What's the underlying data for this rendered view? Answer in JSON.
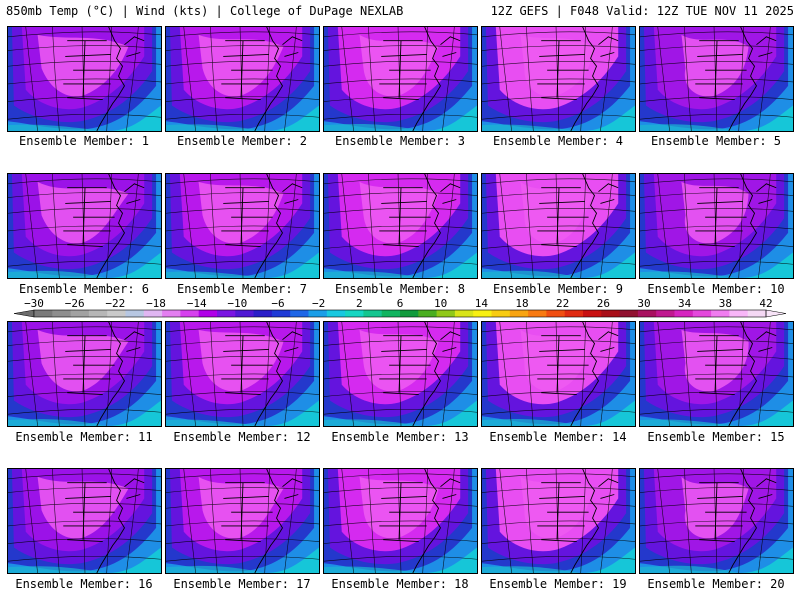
{
  "header": {
    "left": "850mb Temp (°C) | Wind (kts) | College of DuPage NEXLAB",
    "right": "12Z GEFS | F048 Valid: 12Z TUE NOV 11 2025"
  },
  "panels": [
    {
      "label": "Ensemble Member: 1"
    },
    {
      "label": "Ensemble Member: 2"
    },
    {
      "label": "Ensemble Member: 3"
    },
    {
      "label": "Ensemble Member: 4"
    },
    {
      "label": "Ensemble Member: 5"
    },
    {
      "label": "Ensemble Member: 6"
    },
    {
      "label": "Ensemble Member: 7"
    },
    {
      "label": "Ensemble Member: 8"
    },
    {
      "label": "Ensemble Member: 9"
    },
    {
      "label": "Ensemble Member: 10"
    },
    {
      "label": "Ensemble Member: 11"
    },
    {
      "label": "Ensemble Member: 12"
    },
    {
      "label": "Ensemble Member: 13"
    },
    {
      "label": "Ensemble Member: 14"
    },
    {
      "label": "Ensemble Member: 15"
    },
    {
      "label": "Ensemble Member: 16"
    },
    {
      "label": "Ensemble Member: 17"
    },
    {
      "label": "Ensemble Member: 18"
    },
    {
      "label": "Ensemble Member: 19"
    },
    {
      "label": "Ensemble Member: 20"
    }
  ],
  "colorbar": {
    "tick_labels": [
      "−30",
      "−26",
      "−22",
      "−18",
      "−14",
      "−10",
      "−6",
      "−2",
      "2",
      "6",
      "10",
      "14",
      "18",
      "22",
      "26",
      "30",
      "34",
      "38",
      "42"
    ],
    "colors": [
      "#7a7a7a",
      "#8e8e8e",
      "#a2a2a2",
      "#b6b6b6",
      "#c9c9c9",
      "#b7c7e2",
      "#e0b6f2",
      "#e37ef0",
      "#d640ee",
      "#b000e8",
      "#7a14e2",
      "#5018d4",
      "#2a1ec8",
      "#1f3ad6",
      "#1e66e6",
      "#1a9ee8",
      "#18c8e0",
      "#16d6c2",
      "#14c690",
      "#10b460",
      "#109a3c",
      "#4aae20",
      "#90c818",
      "#d8e418",
      "#f8f010",
      "#f8cc10",
      "#f8a410",
      "#f87a10",
      "#f04e10",
      "#e02a10",
      "#c81010",
      "#a80e18",
      "#901030",
      "#a81060",
      "#c01890",
      "#d624c0",
      "#e448dc",
      "#f07cf0",
      "#f8b6f8",
      "#f4d8f4"
    ]
  }
}
